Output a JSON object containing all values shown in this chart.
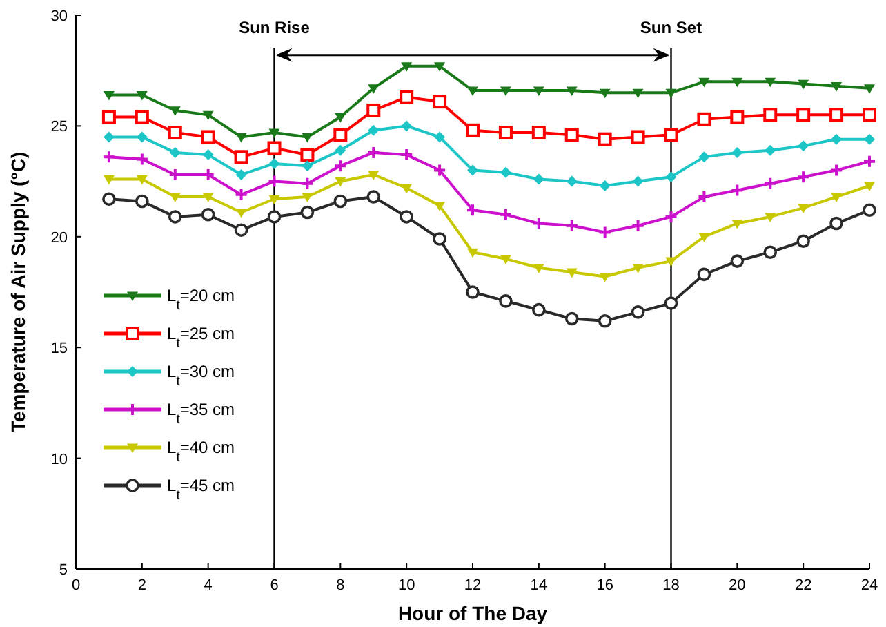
{
  "chart_data": {
    "type": "line",
    "xlabel": "Hour of The Day",
    "ylabel": "Temperature of Air Supply (°C)",
    "x": [
      1,
      2,
      3,
      4,
      5,
      6,
      7,
      8,
      9,
      10,
      11,
      12,
      13,
      14,
      15,
      16,
      17,
      18,
      19,
      20,
      21,
      22,
      23,
      24
    ],
    "series": [
      {
        "name": "L$_{t}$=20 cm",
        "color": "#1a7a1a",
        "marker": "triangle",
        "values": [
          26.4,
          26.4,
          25.7,
          25.5,
          24.5,
          24.7,
          24.5,
          25.4,
          26.7,
          27.7,
          27.7,
          26.6,
          26.6,
          26.6,
          26.6,
          26.5,
          26.5,
          26.5,
          27.0,
          27.0,
          27.0,
          26.9,
          26.8,
          26.7
        ]
      },
      {
        "name": "L$_{t}$=25 cm",
        "color": "#ff0000",
        "marker": "square",
        "values": [
          25.4,
          25.4,
          24.7,
          24.5,
          23.6,
          24.0,
          23.7,
          24.6,
          25.7,
          26.3,
          26.1,
          24.8,
          24.7,
          24.7,
          24.6,
          24.4,
          24.5,
          24.6,
          25.3,
          25.4,
          25.5,
          25.5,
          25.5,
          25.5
        ]
      },
      {
        "name": "L$_{t}$=30 cm",
        "color": "#1cc6c6",
        "marker": "diamond",
        "values": [
          24.5,
          24.5,
          23.8,
          23.7,
          22.8,
          23.3,
          23.2,
          23.9,
          24.8,
          25.0,
          24.5,
          23.0,
          22.9,
          22.6,
          22.5,
          22.3,
          22.5,
          22.7,
          23.6,
          23.8,
          23.9,
          24.1,
          24.4,
          24.4
        ]
      },
      {
        "name": "L$_{t}$=35 cm",
        "color": "#cc11cc",
        "marker": "cross",
        "values": [
          23.6,
          23.5,
          22.8,
          22.8,
          21.9,
          22.5,
          22.4,
          23.2,
          23.8,
          23.7,
          23.0,
          21.2,
          21.0,
          20.6,
          20.5,
          20.2,
          20.5,
          20.9,
          21.8,
          22.1,
          22.4,
          22.7,
          23.0,
          23.4
        ]
      },
      {
        "name": "L$_{t}$=40 cm",
        "color": "#c8c800",
        "marker": "triangle",
        "values": [
          22.6,
          22.6,
          21.8,
          21.8,
          21.1,
          21.7,
          21.8,
          22.5,
          22.8,
          22.2,
          21.4,
          19.3,
          19.0,
          18.6,
          18.4,
          18.2,
          18.6,
          18.9,
          20.0,
          20.6,
          20.9,
          21.3,
          21.8,
          22.3
        ]
      },
      {
        "name": "L$_{t}$=45 cm",
        "color": "#2a2a2a",
        "marker": "circle",
        "values": [
          21.7,
          21.6,
          20.9,
          21.0,
          20.3,
          20.9,
          21.1,
          21.6,
          21.8,
          20.9,
          19.9,
          17.5,
          17.1,
          16.7,
          16.3,
          16.2,
          16.6,
          17.0,
          18.3,
          18.9,
          19.3,
          19.8,
          20.6,
          21.2
        ]
      }
    ],
    "xlim": [
      0,
      24
    ],
    "xticks": [
      0,
      2,
      4,
      6,
      8,
      10,
      12,
      14,
      16,
      18,
      20,
      22,
      24
    ],
    "ylim": [
      5,
      30
    ],
    "yticks": [
      5,
      10,
      15,
      20,
      25,
      30
    ],
    "ref_lines": [
      {
        "axis": "x",
        "value": 6,
        "label": "Sun Rise",
        "color": "#000000"
      },
      {
        "axis": "x",
        "value": 18,
        "label": "Sun Set",
        "color": "#000000"
      }
    ],
    "grid": false,
    "legend": "left",
    "line_style": "solid"
  }
}
